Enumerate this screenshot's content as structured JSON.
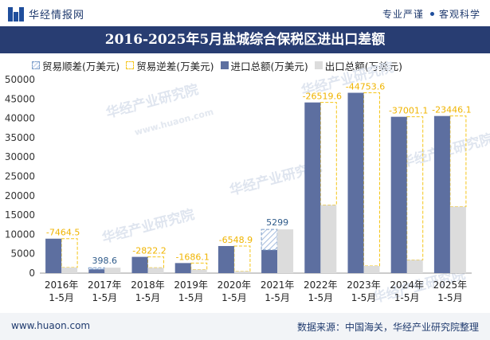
{
  "header": {
    "brand": "华经情报网",
    "tagline_left": "专业严谨",
    "tagline_right": "客观科学"
  },
  "title": "2016-2025年5月盐城综合保税区进出口差额",
  "legend": [
    {
      "label": "贸易顺差(万美元)",
      "key": "surplus"
    },
    {
      "label": "贸易逆差(万美元)",
      "key": "deficit"
    },
    {
      "label": "进口总额(万美元)",
      "key": "import"
    },
    {
      "label": "出口总额(万美元)",
      "key": "export"
    }
  ],
  "colors": {
    "import": "#5d6fa0",
    "export": "#dcdcdc",
    "surplus": "#7a9cc8",
    "deficit": "#f5c518",
    "header_bg": "#283d72"
  },
  "watermarks": [
    "华经产业研究院",
    "www.huaon.com"
  ],
  "chart_data": {
    "type": "bar",
    "title": "2016-2025年5月盐城综合保税区进出口差额",
    "ylim": [
      0,
      50000
    ],
    "yticks": [
      0,
      5000,
      10000,
      15000,
      20000,
      25000,
      30000,
      35000,
      40000,
      45000,
      50000
    ],
    "categories": [
      [
        "2016年",
        "1-5月"
      ],
      [
        "2017年",
        "1-5月"
      ],
      [
        "2018年",
        "1-5月"
      ],
      [
        "2019年",
        "1-5月"
      ],
      [
        "2020年",
        "1-5月"
      ],
      [
        "2021年",
        "1-5月"
      ],
      [
        "2022年",
        "1-5月"
      ],
      [
        "2023年",
        "1-5月"
      ],
      [
        "2024年",
        "1-5月"
      ],
      [
        "2025年",
        "1-5月"
      ]
    ],
    "series": [
      {
        "name": "进口总额(万美元)",
        "values": [
          8900,
          1000,
          4200,
          2600,
          7000,
          6000,
          44100,
          46600,
          40400,
          40600
        ]
      },
      {
        "name": "出口总额(万美元)",
        "values": [
          1440,
          1400,
          1380,
          910,
          450,
          11300,
          17580,
          1850,
          3400,
          17150
        ]
      }
    ],
    "balance": [
      {
        "label": "-7464.5",
        "kind": "deficit"
      },
      {
        "label": "398.6",
        "kind": "surplus"
      },
      {
        "label": "-2822.2",
        "kind": "deficit"
      },
      {
        "label": "-1686.1",
        "kind": "deficit"
      },
      {
        "label": "-6548.9",
        "kind": "deficit"
      },
      {
        "label": "5299",
        "kind": "surplus"
      },
      {
        "label": "-26519.6",
        "kind": "deficit"
      },
      {
        "label": "-44753.6",
        "kind": "deficit"
      },
      {
        "label": "-37001.1",
        "kind": "deficit"
      },
      {
        "label": "-23446.1",
        "kind": "deficit"
      }
    ]
  },
  "footer": {
    "site": "www.huaon.com",
    "source": "数据来源：中国海关，华经产业研究院整理"
  }
}
